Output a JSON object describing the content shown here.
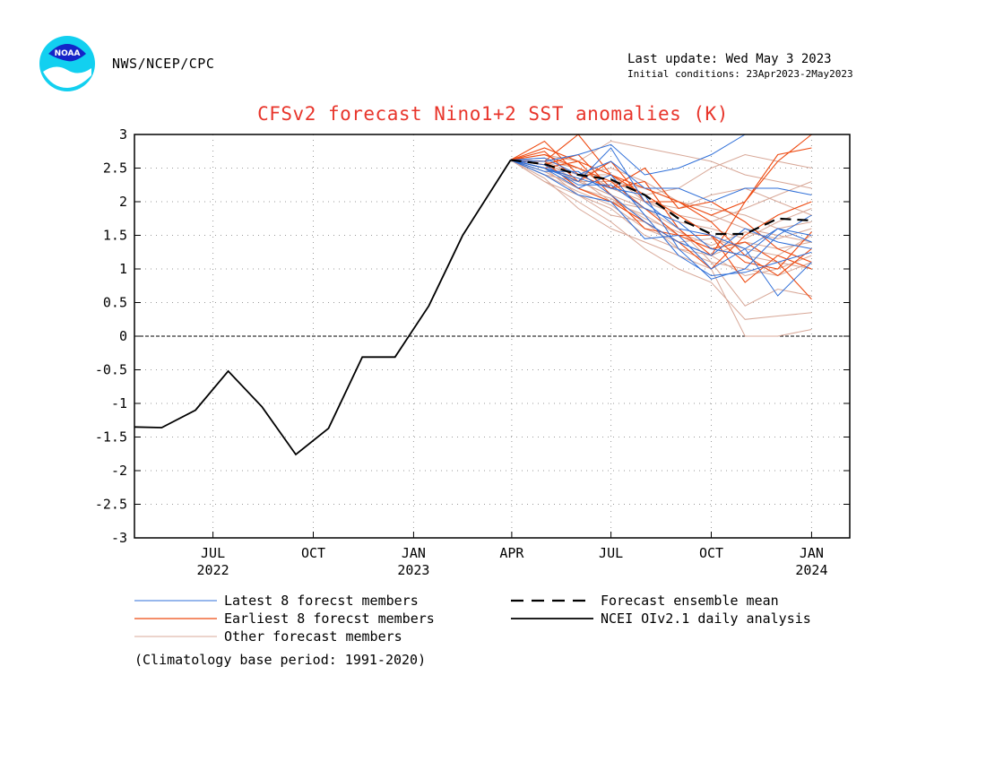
{
  "header": {
    "org": "NWS/NCEP/CPC",
    "last_update": "Last update: Wed May 3 2023",
    "initial_conditions": "Initial conditions: 23Apr2023-2May2023",
    "logo_text": "NOAA"
  },
  "footnote": "(Climatology base period: 1991-2020)",
  "colors": {
    "title": "#e8352b",
    "latest": "#2f6fd8",
    "earliest": "#ee4b12",
    "other": "#d8a898",
    "observed": "#000000"
  },
  "chart_data": {
    "type": "line",
    "title": "CFSv2 forecast Nino1+2 SST anomalies (K)",
    "xlabel": "",
    "ylabel": "",
    "ylim": [
      -3,
      3
    ],
    "yticks": [
      3,
      2.5,
      2,
      1.5,
      1,
      0.5,
      0,
      -0.5,
      -1,
      -1.5,
      -2,
      -2.5,
      -3
    ],
    "ytick_labels": [
      "3",
      "2.5",
      "2",
      "1.5",
      "1",
      "0.5",
      "0",
      "-0.5",
      "-1",
      "-1.5",
      "-2",
      "-2.5",
      "-3"
    ],
    "xlim": [
      "2022-04-20",
      "2024-02-05"
    ],
    "xticks": [
      {
        "date": "2022-07-01",
        "month": "JUL",
        "year": "2022"
      },
      {
        "date": "2022-10-01",
        "month": "OCT",
        "year": ""
      },
      {
        "date": "2023-01-01",
        "month": "JAN",
        "year": "2023"
      },
      {
        "date": "2023-04-01",
        "month": "APR",
        "year": ""
      },
      {
        "date": "2023-07-01",
        "month": "JUL",
        "year": ""
      },
      {
        "date": "2023-10-01",
        "month": "OCT",
        "year": ""
      },
      {
        "date": "2024-01-01",
        "month": "JAN",
        "year": "2024"
      }
    ],
    "grid": true,
    "zero_line": true,
    "legend": [
      {
        "label": "Latest 8 forecst members",
        "style": "latest"
      },
      {
        "label": "Earliest 8 forecst members",
        "style": "earliest"
      },
      {
        "label": "Other forecast members",
        "style": "other"
      },
      {
        "label": "Forecast ensemble mean",
        "style": "mean"
      },
      {
        "label": "NCEI OIv2.1 daily analysis",
        "style": "observed"
      }
    ],
    "observed": {
      "name": "NCEI OIv2.1 daily analysis",
      "points": [
        {
          "x": "2022-04-20",
          "y": -1.35
        },
        {
          "x": "2022-05-15",
          "y": -1.36
        },
        {
          "x": "2022-06-15",
          "y": -1.1
        },
        {
          "x": "2022-07-15",
          "y": -0.52
        },
        {
          "x": "2022-08-15",
          "y": -1.05
        },
        {
          "x": "2022-09-15",
          "y": -1.76
        },
        {
          "x": "2022-10-15",
          "y": -1.37
        },
        {
          "x": "2022-11-15",
          "y": -0.31
        },
        {
          "x": "2022-12-15",
          "y": -0.31
        },
        {
          "x": "2023-01-15",
          "y": 0.45
        },
        {
          "x": "2023-02-15",
          "y": 1.5
        },
        {
          "x": "2023-03-31",
          "y": 2.62
        }
      ]
    },
    "ensemble_mean": {
      "name": "Forecast ensemble mean",
      "points": [
        {
          "x": "2023-03-31",
          "y": 2.62
        },
        {
          "x": "2023-05-01",
          "y": 2.56
        },
        {
          "x": "2023-06-01",
          "y": 2.4
        },
        {
          "x": "2023-07-01",
          "y": 2.33
        },
        {
          "x": "2023-08-01",
          "y": 2.1
        },
        {
          "x": "2023-09-01",
          "y": 1.75
        },
        {
          "x": "2023-10-01",
          "y": 1.52
        },
        {
          "x": "2023-11-01",
          "y": 1.52
        },
        {
          "x": "2023-12-01",
          "y": 1.75
        },
        {
          "x": "2024-01-01",
          "y": 1.72
        }
      ]
    },
    "member_dates": [
      "2023-03-31",
      "2023-05-01",
      "2023-06-01",
      "2023-07-01",
      "2023-08-01",
      "2023-09-01",
      "2023-10-01",
      "2023-11-01",
      "2023-12-01",
      "2024-01-01"
    ],
    "latest_members": [
      [
        2.62,
        2.5,
        2.3,
        2.8,
        2.0,
        1.6,
        1.5,
        1.3,
        1.6,
        1.5
      ],
      [
        2.62,
        2.6,
        2.7,
        2.85,
        2.4,
        2.5,
        2.7,
        3.0,
        3.0,
        3.0
      ],
      [
        2.62,
        2.4,
        2.1,
        2.0,
        1.45,
        1.5,
        1.0,
        1.3,
        0.6,
        1.1
      ],
      [
        2.62,
        2.5,
        2.2,
        2.4,
        1.8,
        1.2,
        0.9,
        0.95,
        1.1,
        1.25
      ],
      [
        2.62,
        2.65,
        2.4,
        2.6,
        2.2,
        2.2,
        2.0,
        2.2,
        2.2,
        2.1
      ],
      [
        2.62,
        2.55,
        2.25,
        2.25,
        1.9,
        1.7,
        1.3,
        1.2,
        1.6,
        1.4
      ],
      [
        2.62,
        2.5,
        2.35,
        2.2,
        2.1,
        1.3,
        0.85,
        1.0,
        1.5,
        1.8
      ],
      [
        2.62,
        2.45,
        2.45,
        2.1,
        1.7,
        1.4,
        1.2,
        1.6,
        1.4,
        1.3
      ]
    ],
    "earliest_members": [
      [
        2.62,
        2.8,
        2.6,
        2.4,
        2.2,
        2.0,
        1.8,
        2.0,
        2.7,
        2.8
      ],
      [
        2.62,
        2.6,
        3.0,
        2.4,
        2.1,
        1.8,
        1.5,
        0.8,
        1.2,
        1.0
      ],
      [
        2.62,
        2.7,
        2.5,
        2.3,
        1.9,
        1.5,
        1.3,
        1.4,
        1.1,
        0.55
      ],
      [
        2.62,
        2.6,
        2.2,
        2.0,
        1.7,
        1.4,
        1.0,
        1.5,
        1.8,
        2.0
      ],
      [
        2.62,
        2.55,
        2.7,
        2.2,
        2.3,
        1.6,
        1.2,
        2.0,
        2.6,
        3.0
      ],
      [
        2.62,
        2.75,
        2.3,
        2.6,
        2.0,
        2.0,
        1.7,
        1.2,
        0.9,
        1.3
      ],
      [
        2.62,
        2.5,
        2.6,
        2.1,
        1.6,
        1.5,
        1.5,
        1.1,
        1.0,
        1.55
      ],
      [
        2.62,
        2.9,
        2.4,
        2.2,
        2.5,
        1.9,
        2.0,
        1.7,
        1.3,
        1.1
      ]
    ],
    "other_members": [
      [
        2.62,
        2.5,
        2.1,
        1.8,
        1.7,
        1.4,
        1.2,
        0.9,
        1.0,
        1.2
      ],
      [
        2.62,
        2.4,
        2.3,
        2.1,
        1.9,
        1.6,
        1.1,
        0.45,
        0.7,
        0.6
      ],
      [
        2.62,
        2.6,
        2.4,
        2.5,
        2.3,
        2.0,
        1.8,
        1.6,
        1.5,
        1.4
      ],
      [
        2.62,
        2.3,
        2.0,
        1.7,
        1.3,
        1.0,
        0.8,
        0.25,
        0.3,
        0.35
      ],
      [
        2.62,
        2.7,
        2.6,
        2.9,
        2.8,
        2.7,
        2.6,
        2.4,
        2.3,
        2.2
      ],
      [
        2.62,
        2.45,
        2.2,
        2.0,
        1.8,
        1.5,
        1.3,
        1.2,
        1.1,
        1.0
      ],
      [
        2.62,
        2.55,
        2.3,
        2.3,
        2.1,
        2.2,
        2.5,
        2.7,
        2.6,
        2.5
      ],
      [
        2.62,
        2.35,
        1.9,
        1.6,
        1.4,
        1.2,
        1.0,
        0.0,
        0.0,
        0.1
      ],
      [
        2.62,
        2.6,
        2.5,
        2.2,
        2.0,
        1.8,
        1.7,
        1.9,
        2.1,
        2.3
      ],
      [
        2.62,
        2.4,
        2.15,
        1.95,
        1.6,
        1.4,
        1.45,
        1.3,
        1.2,
        1.5
      ],
      [
        2.62,
        2.5,
        2.35,
        2.0,
        1.9,
        1.7,
        1.6,
        1.45,
        1.7,
        1.9
      ],
      [
        2.62,
        2.65,
        2.5,
        2.3,
        2.2,
        2.0,
        1.9,
        1.8,
        1.6,
        1.7
      ],
      [
        2.62,
        2.3,
        2.1,
        1.9,
        1.5,
        1.3,
        1.1,
        1.0,
        0.9,
        1.1
      ],
      [
        2.62,
        2.55,
        2.4,
        2.4,
        2.0,
        1.9,
        2.1,
        2.2,
        2.0,
        1.8
      ],
      [
        2.62,
        2.45,
        2.2,
        2.05,
        1.75,
        1.55,
        1.35,
        1.55,
        1.45,
        1.6
      ],
      [
        2.62,
        2.6,
        2.3,
        2.1,
        1.7,
        1.3,
        1.2,
        1.4,
        1.3,
        1.4
      ]
    ]
  }
}
